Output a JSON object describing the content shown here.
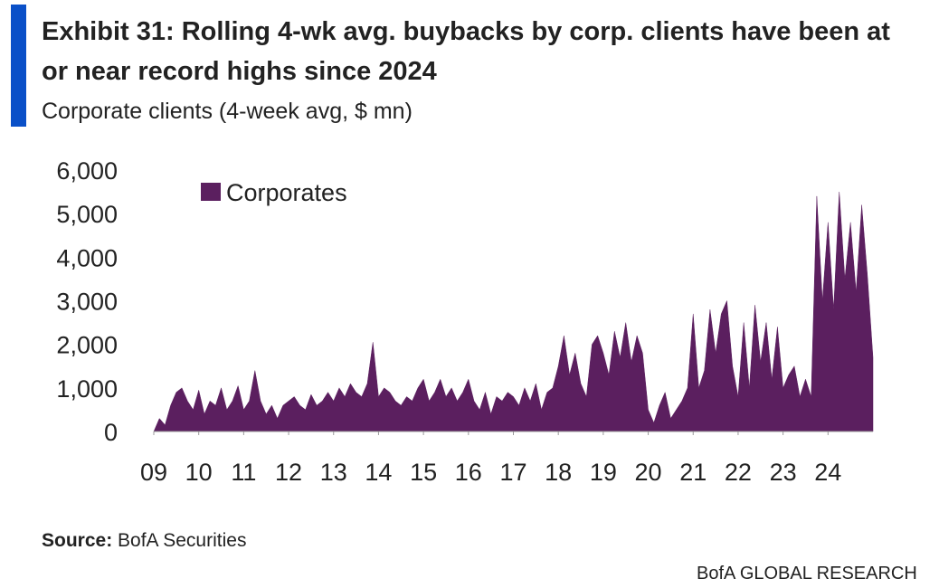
{
  "chart_data": {
    "type": "area",
    "title": [
      "Exhibit 31: Rolling 4-wk avg. buybacks by corp. clients have been at",
      "or near record highs since 2024"
    ],
    "subtitle": "Corporate clients (4-week avg, $ mn)",
    "source": {
      "label": "Source:",
      "text": "BofA Securities"
    },
    "footer": "BofA GLOBAL RESEARCH",
    "legend": "upper left",
    "xlim": [
      2009,
      2025
    ],
    "xticks": [
      {
        "value": 2009,
        "label": "09"
      },
      {
        "value": 2010,
        "label": "10"
      },
      {
        "value": 2011,
        "label": "11"
      },
      {
        "value": 2012,
        "label": "12"
      },
      {
        "value": 2013,
        "label": "13"
      },
      {
        "value": 2014,
        "label": "14"
      },
      {
        "value": 2015,
        "label": "15"
      },
      {
        "value": 2016,
        "label": "16"
      },
      {
        "value": 2017,
        "label": "17"
      },
      {
        "value": 2018,
        "label": "18"
      },
      {
        "value": 2019,
        "label": "19"
      },
      {
        "value": 2020,
        "label": "20"
      },
      {
        "value": 2021,
        "label": "21"
      },
      {
        "value": 2022,
        "label": "22"
      },
      {
        "value": 2023,
        "label": "23"
      },
      {
        "value": 2024,
        "label": "24"
      }
    ],
    "ylim": [
      0,
      6000
    ],
    "yticks": [
      0,
      {
        "value": 1000,
        "label": "1,000"
      },
      {
        "value": 2000,
        "label": "2,000"
      },
      {
        "value": 3000,
        "label": "3,000"
      },
      {
        "value": 4000,
        "label": "4,000"
      },
      {
        "value": 5000,
        "label": "5,000"
      },
      {
        "value": 6000,
        "label": "6,000"
      }
    ],
    "x": [
      2009,
      2009.125,
      2009.25,
      2009.375,
      2009.5,
      2009.625,
      2009.75,
      2009.875,
      2010,
      2010.125,
      2010.25,
      2010.375,
      2010.5,
      2010.625,
      2010.75,
      2010.875,
      2011,
      2011.125,
      2011.25,
      2011.375,
      2011.5,
      2011.625,
      2011.75,
      2011.875,
      2012,
      2012.125,
      2012.25,
      2012.375,
      2012.5,
      2012.625,
      2012.75,
      2012.875,
      2013,
      2013.125,
      2013.25,
      2013.375,
      2013.5,
      2013.625,
      2013.75,
      2013.875,
      2014,
      2014.125,
      2014.25,
      2014.375,
      2014.5,
      2014.625,
      2014.75,
      2014.875,
      2015,
      2015.125,
      2015.25,
      2015.375,
      2015.5,
      2015.625,
      2015.75,
      2015.875,
      2016,
      2016.125,
      2016.25,
      2016.375,
      2016.5,
      2016.625,
      2016.75,
      2016.875,
      2017,
      2017.125,
      2017.25,
      2017.375,
      2017.5,
      2017.625,
      2017.75,
      2017.875,
      2018,
      2018.125,
      2018.25,
      2018.375,
      2018.5,
      2018.625,
      2018.75,
      2018.875,
      2019,
      2019.125,
      2019.25,
      2019.375,
      2019.5,
      2019.625,
      2019.75,
      2019.875,
      2020,
      2020.125,
      2020.25,
      2020.375,
      2020.5,
      2020.625,
      2020.75,
      2020.875,
      2021,
      2021.125,
      2021.25,
      2021.375,
      2021.5,
      2021.625,
      2021.75,
      2021.875,
      2022,
      2022.125,
      2022.25,
      2022.375,
      2022.5,
      2022.625,
      2022.75,
      2022.875,
      2023,
      2023.125,
      2023.25,
      2023.375,
      2023.5,
      2023.625,
      2023.75,
      2023.875,
      2024,
      2024.125,
      2024.25,
      2024.375,
      2024.5,
      2024.625,
      2024.75,
      2024.875,
      2025
    ],
    "series": [
      {
        "name": "Corporates",
        "color": "#5b1f5f",
        "values": [
          0,
          300,
          150,
          600,
          900,
          1000,
          700,
          500,
          950,
          400,
          700,
          600,
          1000,
          500,
          700,
          1050,
          500,
          700,
          1400,
          700,
          400,
          600,
          300,
          600,
          700,
          800,
          600,
          500,
          850,
          600,
          700,
          900,
          700,
          1000,
          800,
          1100,
          900,
          800,
          1100,
          2050,
          800,
          1000,
          900,
          700,
          600,
          800,
          700,
          1000,
          1200,
          700,
          900,
          1200,
          800,
          1000,
          700,
          900,
          1200,
          700,
          500,
          900,
          400,
          800,
          700,
          900,
          800,
          600,
          1000,
          700,
          1100,
          500,
          900,
          1000,
          1500,
          2200,
          1300,
          1800,
          1100,
          800,
          2000,
          2200,
          1800,
          1300,
          2300,
          1700,
          2500,
          1600,
          2200,
          1800,
          500,
          200,
          600,
          900,
          300,
          500,
          700,
          1000,
          2700,
          1000,
          1400,
          2800,
          1800,
          2700,
          3000,
          1500,
          800,
          2500,
          1000,
          2900,
          1600,
          2500,
          1200,
          2400,
          1000,
          1300,
          1500,
          800,
          1200,
          800,
          5400,
          3000,
          4800,
          2800,
          5500,
          3500,
          4800,
          3200,
          5200,
          3600,
          1700
        ]
      }
    ]
  }
}
